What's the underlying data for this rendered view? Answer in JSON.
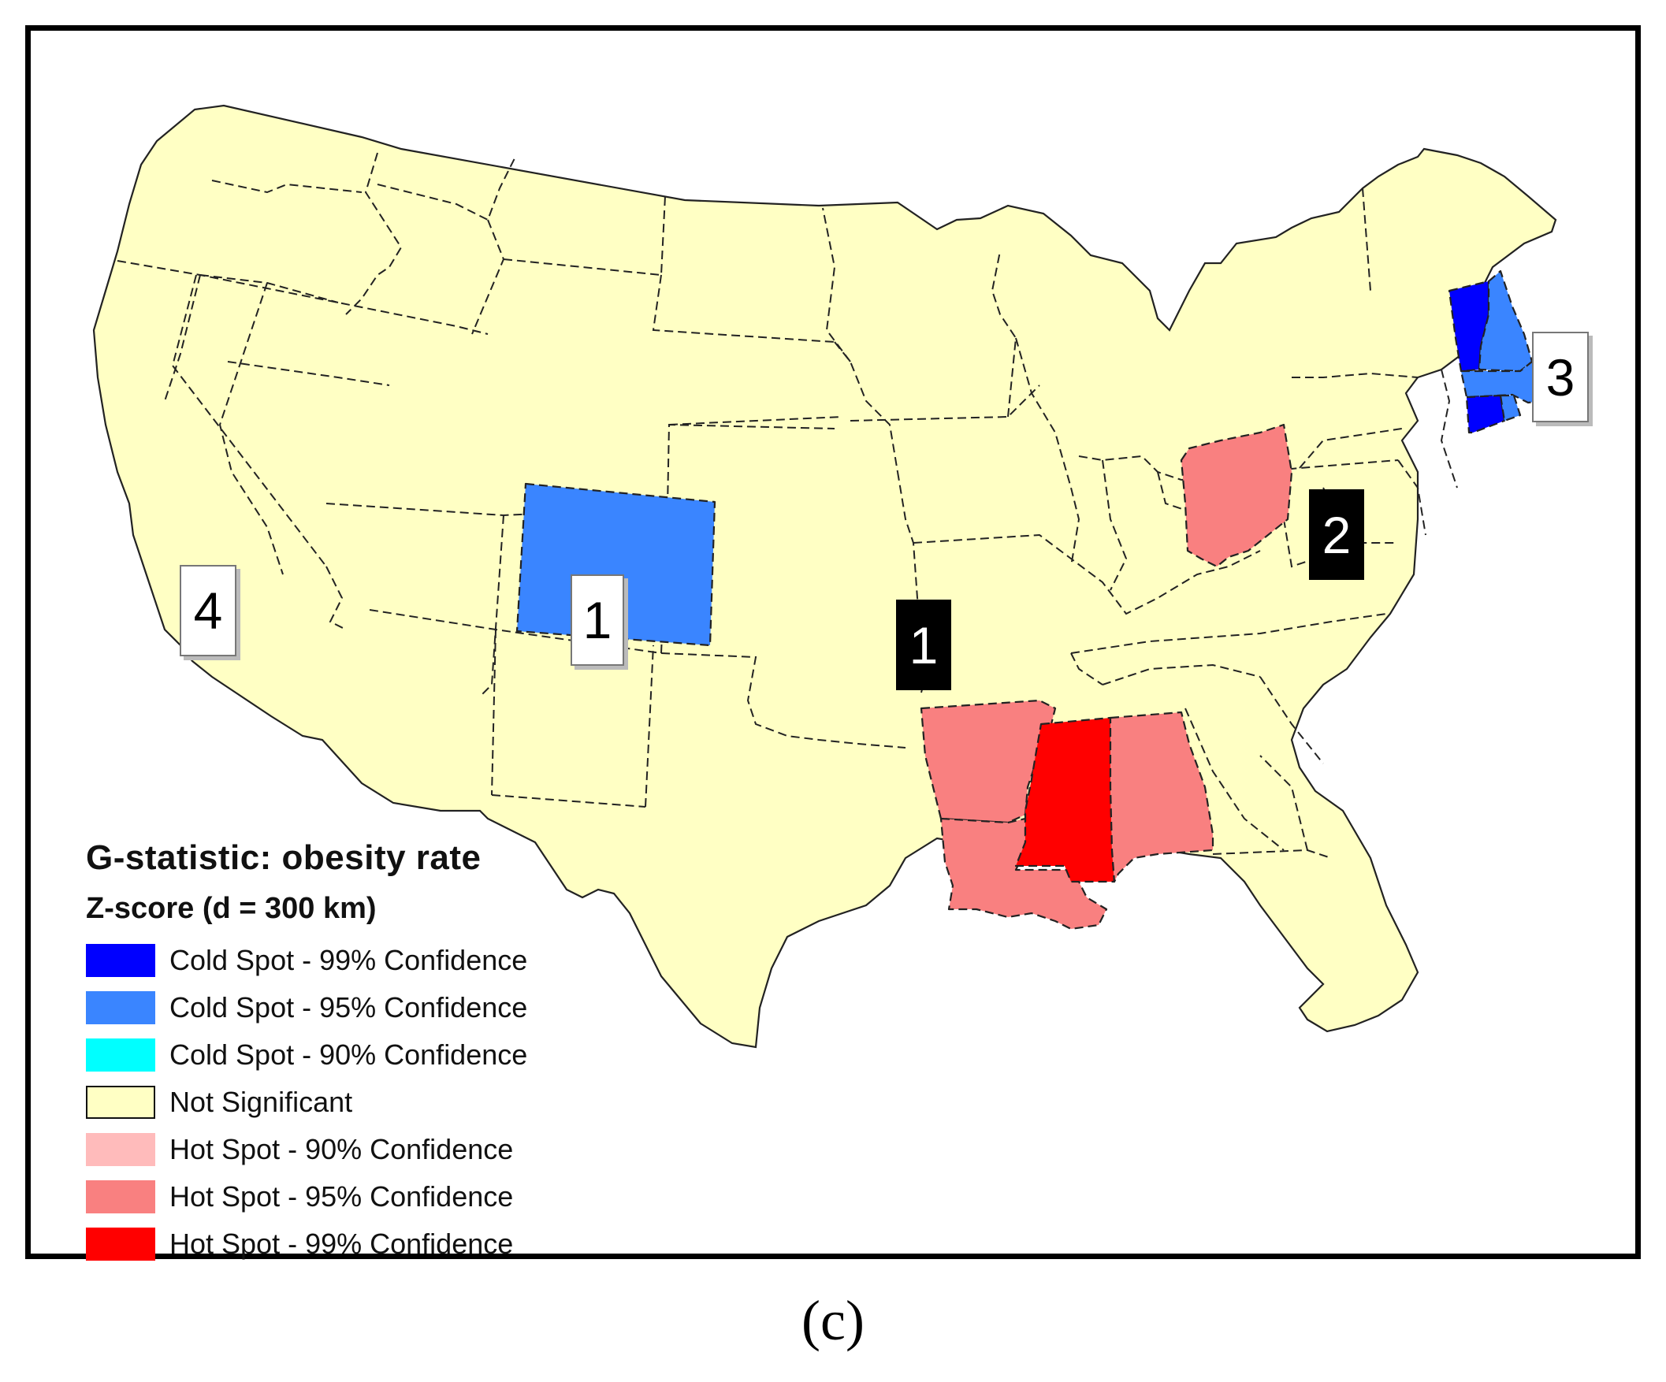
{
  "map": {
    "classes": {
      "cold99": "#0000FF",
      "cold95": "#3A85FF",
      "cold90": "#00FFFF",
      "not_sig": "#FFFFC4",
      "hot90": "#FFBBBB",
      "hot95": "#F98080",
      "hot99": "#FF0000"
    },
    "states": [
      {
        "name": "Colorado",
        "class": "cold95"
      },
      {
        "name": "Vermont",
        "class": "cold99"
      },
      {
        "name": "Connecticut",
        "class": "cold99"
      },
      {
        "name": "New Hampshire",
        "class": "cold95"
      },
      {
        "name": "Massachusetts",
        "class": "cold95"
      },
      {
        "name": "Rhode Island",
        "class": "cold95"
      },
      {
        "name": "Ohio",
        "class": "hot95"
      },
      {
        "name": "Arkansas",
        "class": "hot95"
      },
      {
        "name": "Louisiana",
        "class": "hot95"
      },
      {
        "name": "Alabama",
        "class": "hot95"
      },
      {
        "name": "Mississippi",
        "class": "hot99"
      }
    ],
    "cluster_labels": [
      {
        "id": "label-1-colorado",
        "text": "1",
        "style": "white"
      },
      {
        "id": "label-1-arkansas",
        "text": "1",
        "style": "black"
      },
      {
        "id": "label-2",
        "text": "2",
        "style": "black"
      },
      {
        "id": "label-3",
        "text": "3",
        "style": "white"
      },
      {
        "id": "label-4",
        "text": "4",
        "style": "white"
      }
    ]
  },
  "legend": {
    "title": "G-statistic: obesity rate",
    "subtitle": "Z-score (d = 300 km)",
    "items": [
      {
        "label": "Cold Spot - 99% Confidence",
        "color": "#0000FF"
      },
      {
        "label": "Cold Spot - 95% Confidence",
        "color": "#3A85FF"
      },
      {
        "label": "Cold Spot - 90% Confidence",
        "color": "#00FFFF"
      },
      {
        "label": "Not Significant",
        "color": "#FFFFC4"
      },
      {
        "label": "Hot Spot - 90% Confidence",
        "color": "#FFBBBB"
      },
      {
        "label": "Hot Spot - 95% Confidence",
        "color": "#F98080"
      },
      {
        "label": "Hot Spot - 99% Confidence",
        "color": "#FF0000"
      }
    ]
  },
  "caption": "(c)"
}
